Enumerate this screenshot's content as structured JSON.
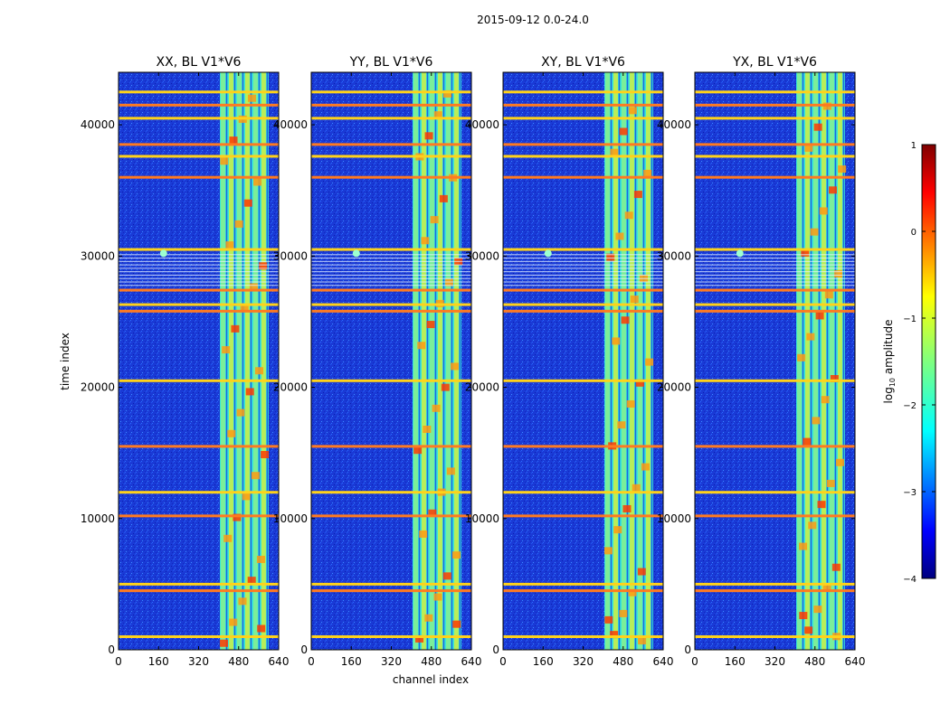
{
  "figure_title": "2015-09-12 0.0-24.0",
  "ylabel": "time index",
  "xlabel": "channel index",
  "colorbar": {
    "label": "log10 amplitude",
    "label_prefix": "log",
    "label_sub": "10",
    "label_suffix": " amplitude",
    "ticks": [
      "1",
      "0",
      "−1",
      "−2",
      "−3",
      "−4"
    ],
    "range": [
      -4,
      1
    ],
    "colormap": "jet"
  },
  "chart_data": {
    "type": "heatmap",
    "colormap": "jet",
    "x_ticks": [
      "0",
      "160",
      "320",
      "480",
      "640"
    ],
    "y_ticks": [
      "0",
      "10000",
      "20000",
      "30000",
      "40000"
    ],
    "panels": [
      {
        "title": "XX, BL V1*V6",
        "xlim": [
          0,
          640
        ],
        "ylim": [
          0,
          44000
        ]
      },
      {
        "title": "YY, BL V1*V6",
        "xlim": [
          0,
          640
        ],
        "ylim": [
          0,
          44000
        ]
      },
      {
        "title": "XY, BL V1*V6",
        "xlim": [
          0,
          640
        ],
        "ylim": [
          0,
          44000
        ]
      },
      {
        "title": "YX, BL V1*V6",
        "xlim": [
          0,
          640
        ],
        "ylim": [
          0,
          44000
        ]
      }
    ],
    "bright_band_channels": [
      405,
      600
    ],
    "rfi_rows_time_index": [
      1000,
      4500,
      5000,
      10200,
      12000,
      15500,
      20500,
      25800,
      26300,
      27400,
      30500,
      36000,
      37600,
      38500,
      40500,
      41500,
      42500
    ]
  }
}
